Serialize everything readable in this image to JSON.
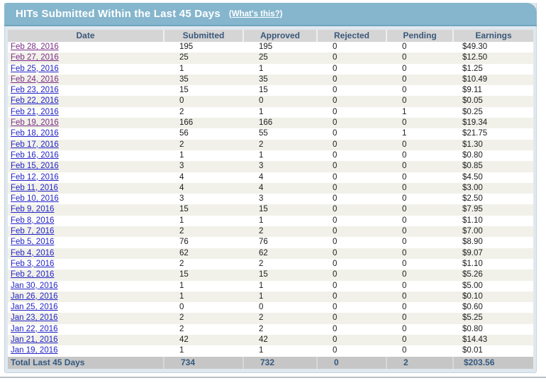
{
  "header": {
    "title": "HITs Submitted Within the Last 45 Days",
    "whats_this_label": "(What's this?)"
  },
  "table": {
    "columns": [
      "Date",
      "Submitted",
      "Approved",
      "Rejected",
      "Pending",
      "Earnings"
    ],
    "rows": [
      {
        "date": "Feb 28, 2016",
        "submitted": "195",
        "approved": "195",
        "rejected": "0",
        "pending": "0",
        "earnings": "$49.30",
        "visited": true
      },
      {
        "date": "Feb 27, 2016",
        "submitted": "25",
        "approved": "25",
        "rejected": "0",
        "pending": "0",
        "earnings": "$12.50",
        "visited": true
      },
      {
        "date": "Feb 25, 2016",
        "submitted": "1",
        "approved": "1",
        "rejected": "0",
        "pending": "0",
        "earnings": "$1.25",
        "visited": false
      },
      {
        "date": "Feb 24, 2016",
        "submitted": "35",
        "approved": "35",
        "rejected": "0",
        "pending": "0",
        "earnings": "$10.49",
        "visited": true
      },
      {
        "date": "Feb 23, 2016",
        "submitted": "15",
        "approved": "15",
        "rejected": "0",
        "pending": "0",
        "earnings": "$9.11",
        "visited": false
      },
      {
        "date": "Feb 22, 2016",
        "submitted": "0",
        "approved": "0",
        "rejected": "0",
        "pending": "0",
        "earnings": "$0.05",
        "visited": false
      },
      {
        "date": "Feb 21, 2016",
        "submitted": "2",
        "approved": "1",
        "rejected": "0",
        "pending": "1",
        "earnings": "$0.25",
        "visited": false
      },
      {
        "date": "Feb 19, 2016",
        "submitted": "166",
        "approved": "166",
        "rejected": "0",
        "pending": "0",
        "earnings": "$19.34",
        "visited": true
      },
      {
        "date": "Feb 18, 2016",
        "submitted": "56",
        "approved": "55",
        "rejected": "0",
        "pending": "1",
        "earnings": "$21.75",
        "visited": false
      },
      {
        "date": "Feb 17, 2016",
        "submitted": "2",
        "approved": "2",
        "rejected": "0",
        "pending": "0",
        "earnings": "$1.30",
        "visited": false
      },
      {
        "date": "Feb 16, 2016",
        "submitted": "1",
        "approved": "1",
        "rejected": "0",
        "pending": "0",
        "earnings": "$0.80",
        "visited": false
      },
      {
        "date": "Feb 15, 2016",
        "submitted": "3",
        "approved": "3",
        "rejected": "0",
        "pending": "0",
        "earnings": "$0.85",
        "visited": false
      },
      {
        "date": "Feb 12, 2016",
        "submitted": "4",
        "approved": "4",
        "rejected": "0",
        "pending": "0",
        "earnings": "$4.50",
        "visited": false
      },
      {
        "date": "Feb 11, 2016",
        "submitted": "4",
        "approved": "4",
        "rejected": "0",
        "pending": "0",
        "earnings": "$3.00",
        "visited": false
      },
      {
        "date": "Feb 10, 2016",
        "submitted": "3",
        "approved": "3",
        "rejected": "0",
        "pending": "0",
        "earnings": "$2.50",
        "visited": false
      },
      {
        "date": "Feb 9, 2016",
        "submitted": "15",
        "approved": "15",
        "rejected": "0",
        "pending": "0",
        "earnings": "$7.95",
        "visited": false
      },
      {
        "date": "Feb 8, 2016",
        "submitted": "1",
        "approved": "1",
        "rejected": "0",
        "pending": "0",
        "earnings": "$1.10",
        "visited": false
      },
      {
        "date": "Feb 7, 2016",
        "submitted": "2",
        "approved": "2",
        "rejected": "0",
        "pending": "0",
        "earnings": "$7.00",
        "visited": false
      },
      {
        "date": "Feb 5, 2016",
        "submitted": "76",
        "approved": "76",
        "rejected": "0",
        "pending": "0",
        "earnings": "$8.90",
        "visited": false
      },
      {
        "date": "Feb 4, 2016",
        "submitted": "62",
        "approved": "62",
        "rejected": "0",
        "pending": "0",
        "earnings": "$9.07",
        "visited": false
      },
      {
        "date": "Feb 3, 2016",
        "submitted": "2",
        "approved": "2",
        "rejected": "0",
        "pending": "0",
        "earnings": "$1.10",
        "visited": false
      },
      {
        "date": "Feb 2, 2016",
        "submitted": "15",
        "approved": "15",
        "rejected": "0",
        "pending": "0",
        "earnings": "$5.26",
        "visited": false
      },
      {
        "date": "Jan 30, 2016",
        "submitted": "1",
        "approved": "1",
        "rejected": "0",
        "pending": "0",
        "earnings": "$5.00",
        "visited": false
      },
      {
        "date": "Jan 26, 2016",
        "submitted": "1",
        "approved": "1",
        "rejected": "0",
        "pending": "0",
        "earnings": "$0.10",
        "visited": false
      },
      {
        "date": "Jan 25, 2016",
        "submitted": "0",
        "approved": "0",
        "rejected": "0",
        "pending": "0",
        "earnings": "$0.60",
        "visited": false
      },
      {
        "date": "Jan 23, 2016",
        "submitted": "2",
        "approved": "2",
        "rejected": "0",
        "pending": "0",
        "earnings": "$5.25",
        "visited": false
      },
      {
        "date": "Jan 22, 2016",
        "submitted": "2",
        "approved": "2",
        "rejected": "0",
        "pending": "0",
        "earnings": "$0.80",
        "visited": false
      },
      {
        "date": "Jan 21, 2016",
        "submitted": "42",
        "approved": "42",
        "rejected": "0",
        "pending": "0",
        "earnings": "$14.43",
        "visited": false
      },
      {
        "date": "Jan 19, 2016",
        "submitted": "1",
        "approved": "1",
        "rejected": "0",
        "pending": "0",
        "earnings": "$0.01",
        "visited": false
      }
    ],
    "total": {
      "label": "Total Last 45 Days",
      "submitted": "734",
      "approved": "732",
      "rejected": "0",
      "pending": "2",
      "earnings": "$203.56"
    }
  },
  "colors": {
    "titlebar_bg": "#85B6CD",
    "titlebar_border": "#6FA3BC",
    "header_row_bg": "#D5D5D5",
    "header_text": "#3A587A",
    "stripe_bg": "#F1F1EA",
    "total_row_bg": "#C6C6C6",
    "total_text": "#33597F",
    "link_blue": "#2323C6",
    "link_visited": "#7B2E86"
  }
}
